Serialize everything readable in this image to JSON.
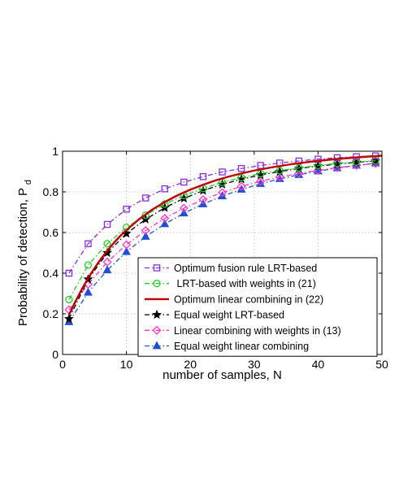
{
  "chart_data": {
    "type": "line",
    "xlabel": "number of samples, N",
    "ylabel_main": "Probability of detection, P",
    "ylabel_sub": "d",
    "xlim": [
      0,
      50
    ],
    "ylim": [
      0,
      1
    ],
    "x_ticks": [
      "0",
      "10",
      "20",
      "30",
      "40",
      "50"
    ],
    "y_ticks": [
      "0",
      "0.2",
      "0.4",
      "0.6",
      "0.8",
      "1"
    ],
    "grid": true,
    "legend_position": "bottom-right",
    "x": [
      1,
      4,
      7,
      10,
      13,
      16,
      19,
      22,
      25,
      28,
      31,
      34,
      37,
      40,
      43,
      46,
      49
    ],
    "series": [
      {
        "name": "Optimum fusion rule LRT-based",
        "color": "#8a2be2",
        "dash": "dashdot",
        "marker": "square",
        "values": [
          0.4,
          0.545,
          0.64,
          0.715,
          0.77,
          0.815,
          0.848,
          0.875,
          0.898,
          0.915,
          0.93,
          0.942,
          0.952,
          0.961,
          0.968,
          0.973,
          0.977
        ]
      },
      {
        "name": " LRT-based with weights in (21)",
        "color": "#22cc22",
        "dash": "dashdot",
        "marker": "circle",
        "values": [
          0.27,
          0.44,
          0.545,
          0.625,
          0.685,
          0.74,
          0.782,
          0.817,
          0.847,
          0.87,
          0.89,
          0.905,
          0.918,
          0.93,
          0.94,
          0.947,
          0.953
        ]
      },
      {
        "name": "Optimum linear combining in (22)",
        "color": "#c00000",
        "dash": "solid",
        "marker": "none",
        "x": [
          1,
          2,
          3,
          4,
          5,
          6,
          7,
          8,
          9,
          10,
          12,
          14,
          16,
          18,
          20,
          22,
          24,
          26,
          28,
          30,
          33,
          36,
          39,
          42,
          45,
          48,
          50
        ],
        "values": [
          0.195,
          0.26,
          0.32,
          0.375,
          0.425,
          0.47,
          0.51,
          0.548,
          0.582,
          0.612,
          0.666,
          0.712,
          0.75,
          0.783,
          0.811,
          0.835,
          0.857,
          0.875,
          0.891,
          0.905,
          0.922,
          0.937,
          0.949,
          0.959,
          0.967,
          0.974,
          0.978
        ]
      },
      {
        "name": "Equal weight LRT-based",
        "color": "#000000",
        "dash": "dashdot",
        "marker": "star",
        "values": [
          0.175,
          0.37,
          0.5,
          0.595,
          0.665,
          0.722,
          0.768,
          0.806,
          0.837,
          0.862,
          0.883,
          0.9,
          0.915,
          0.927,
          0.937,
          0.945,
          0.952
        ]
      },
      {
        "name": "Linear combining with weights in (13)",
        "color": "#ff33cc",
        "dash": "dashdot",
        "marker": "diamond",
        "values": [
          0.22,
          0.345,
          0.455,
          0.54,
          0.61,
          0.67,
          0.72,
          0.762,
          0.797,
          0.827,
          0.852,
          0.873,
          0.891,
          0.906,
          0.919,
          0.93,
          0.94
        ]
      },
      {
        "name": "Equal weight linear combining",
        "color": "#1f4fd6",
        "dash": "dashdot",
        "marker": "triangle",
        "values": [
          0.16,
          0.305,
          0.415,
          0.505,
          0.58,
          0.642,
          0.695,
          0.74,
          0.779,
          0.812,
          0.84,
          0.864,
          0.884,
          0.902,
          0.917,
          0.93,
          0.941
        ]
      }
    ]
  }
}
